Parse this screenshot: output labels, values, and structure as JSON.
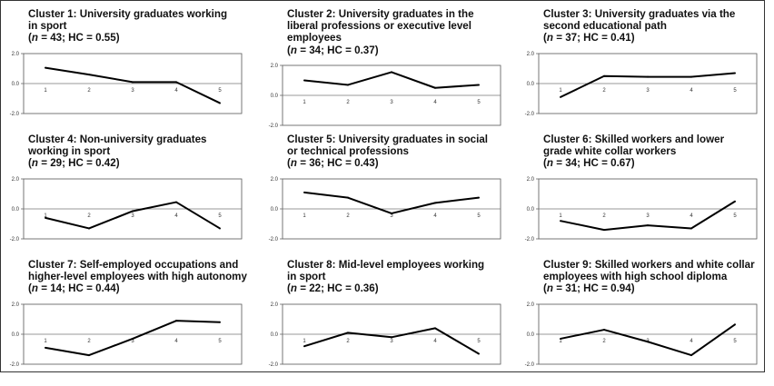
{
  "chart_data": [
    {
      "type": "line",
      "title_lines": [
        "Cluster 1: University graduates working",
        "in sport"
      ],
      "stats": {
        "n": "43",
        "hc": "0.55"
      },
      "x": [
        1,
        2,
        3,
        4,
        5
      ],
      "values": [
        1.05,
        0.6,
        0.1,
        0.1,
        -1.3
      ],
      "ylim": [
        -2.0,
        2.0
      ],
      "ytick_labels": [
        "2.0",
        "0.0",
        "-2.0"
      ],
      "xtick_labels": [
        "1",
        "2",
        "3",
        "4",
        "5"
      ]
    },
    {
      "type": "line",
      "title_lines": [
        "Cluster 2: University graduates in the",
        "liberal professions or executive level",
        "employees"
      ],
      "stats": {
        "n": "34",
        "hc": "0.37"
      },
      "x": [
        1,
        2,
        3,
        4,
        5
      ],
      "values": [
        1.0,
        0.7,
        1.55,
        0.5,
        0.7
      ],
      "ylim": [
        -2.0,
        2.0
      ],
      "ytick_labels": [
        "2.0",
        "0.0",
        "-2.0"
      ],
      "xtick_labels": [
        "1",
        "2",
        "3",
        "4",
        "5"
      ]
    },
    {
      "type": "line",
      "title_lines": [
        "Cluster 3: University graduates via the",
        "second educational path"
      ],
      "stats": {
        "n": "37",
        "hc": "0.41"
      },
      "x": [
        1,
        2,
        3,
        4,
        5
      ],
      "values": [
        -0.9,
        0.5,
        0.45,
        0.45,
        0.7
      ],
      "ylim": [
        -2.0,
        2.0
      ],
      "ytick_labels": [
        "2.0",
        "0.0",
        "-2.0"
      ],
      "xtick_labels": [
        "1",
        "2",
        "3",
        "4",
        "5"
      ]
    },
    {
      "type": "line",
      "title_lines": [
        "Cluster 4: Non-university graduates",
        "working in sport"
      ],
      "stats": {
        "n": "29",
        "hc": "0.42"
      },
      "x": [
        1,
        2,
        3,
        4,
        5
      ],
      "values": [
        -0.6,
        -1.3,
        -0.15,
        0.45,
        -1.3
      ],
      "ylim": [
        -2.0,
        2.0
      ],
      "ytick_labels": [
        "2.0",
        "0.0",
        "-2.0"
      ],
      "xtick_labels": [
        "1",
        "2",
        "3",
        "4",
        "5"
      ]
    },
    {
      "type": "line",
      "title_lines": [
        "Cluster 5: University graduates in social",
        "or technical professions"
      ],
      "stats": {
        "n": "36",
        "hc": "0.43"
      },
      "x": [
        1,
        2,
        3,
        4,
        5
      ],
      "values": [
        1.1,
        0.75,
        -0.3,
        0.4,
        0.75
      ],
      "ylim": [
        -2.0,
        2.0
      ],
      "ytick_labels": [
        "2.0",
        "0.0",
        "-2.0"
      ],
      "xtick_labels": [
        "1",
        "2",
        "3",
        "4",
        "5"
      ]
    },
    {
      "type": "line",
      "title_lines": [
        "Cluster 6: Skilled workers and lower",
        "grade white collar workers"
      ],
      "stats": {
        "n": "34",
        "hc": "0.67"
      },
      "x": [
        1,
        2,
        3,
        4,
        5
      ],
      "values": [
        -0.8,
        -1.4,
        -1.1,
        -1.3,
        0.5
      ],
      "ylim": [
        -2.0,
        2.0
      ],
      "ytick_labels": [
        "2.0",
        "0.0",
        "-2.0"
      ],
      "xtick_labels": [
        "1",
        "2",
        "3",
        "4",
        "5"
      ]
    },
    {
      "type": "line",
      "title_lines": [
        "Cluster 7: Self-employed occupations and",
        "higher-level employees with high autonomy"
      ],
      "stats": {
        "n": "14",
        "hc": "0.44"
      },
      "x": [
        1,
        2,
        3,
        4,
        5
      ],
      "values": [
        -0.9,
        -1.4,
        -0.3,
        0.9,
        0.8
      ],
      "ylim": [
        -2.0,
        2.0
      ],
      "ytick_labels": [
        "2.0",
        "0.0",
        "-2.0"
      ],
      "xtick_labels": [
        "1",
        "2",
        "3",
        "4",
        "5"
      ]
    },
    {
      "type": "line",
      "title_lines": [
        "Cluster 8: Mid-level employees working",
        "in sport"
      ],
      "stats": {
        "n": "22",
        "hc": "0.36"
      },
      "x": [
        1,
        2,
        3,
        4,
        5
      ],
      "values": [
        -0.8,
        0.1,
        -0.2,
        0.4,
        -1.3
      ],
      "ylim": [
        -2.0,
        2.0
      ],
      "ytick_labels": [
        "2.0",
        "0.0",
        "-2.0"
      ],
      "xtick_labels": [
        "1",
        "2",
        "3",
        "4",
        "5"
      ]
    },
    {
      "type": "line",
      "title_lines": [
        "Cluster 9: Skilled workers and white collar",
        "employees with high school diploma"
      ],
      "stats": {
        "n": "31",
        "hc": "0.94"
      },
      "x": [
        1,
        2,
        3,
        4,
        5
      ],
      "values": [
        -0.3,
        0.3,
        -0.5,
        -1.4,
        0.65
      ],
      "ylim": [
        -2.0,
        2.0
      ],
      "ytick_labels": [
        "2.0",
        "0.0",
        "-2.0"
      ],
      "xtick_labels": [
        "1",
        "2",
        "3",
        "4",
        "5"
      ]
    }
  ]
}
